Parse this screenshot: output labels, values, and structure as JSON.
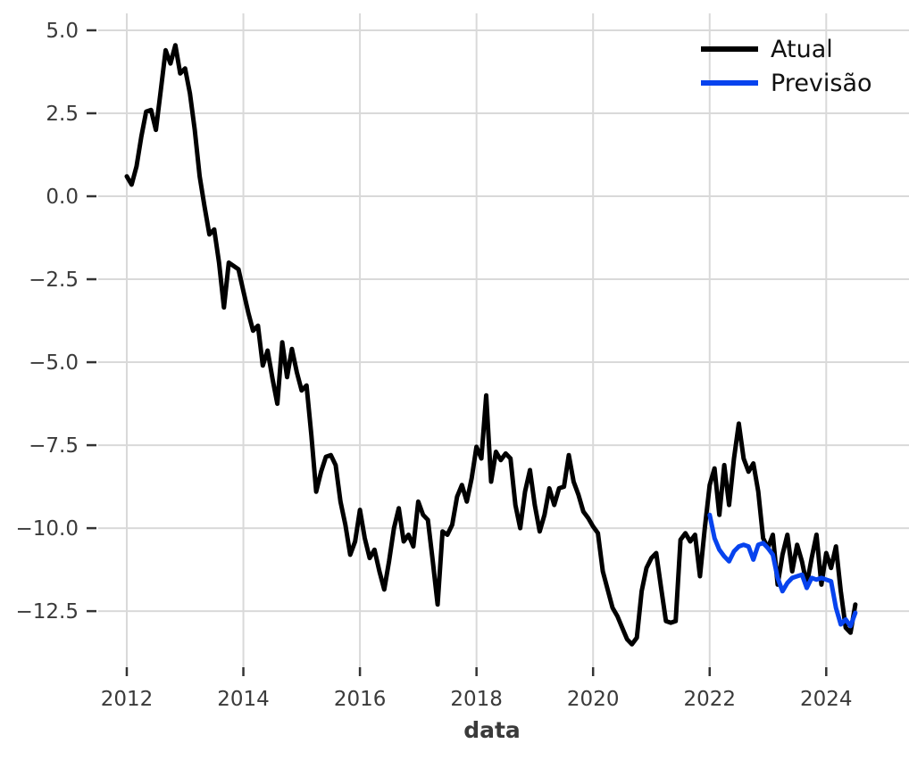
{
  "chart_data": {
    "type": "line",
    "title": "",
    "xlabel": "data",
    "ylabel": "",
    "grid": true,
    "background_color": "#ffffff",
    "grid_color": "#d9d9d9",
    "tick_color": "#333333",
    "tick_label_color": "#3a3a3a",
    "legend_position": "top-right",
    "xlim": [
      2011.51,
      2025.42
    ],
    "ylim": [
      -14.19,
      5.51
    ],
    "x_ticks": [
      2012,
      2014,
      2016,
      2018,
      2020,
      2022,
      2024
    ],
    "x_tick_labels": [
      "2012",
      "2014",
      "2016",
      "2018",
      "2020",
      "2022",
      "2024"
    ],
    "y_ticks": [
      5.0,
      2.5,
      0.0,
      -2.5,
      -5.0,
      -7.5,
      -10.0,
      -12.5
    ],
    "y_tick_labels": [
      "5.0",
      "2.5",
      "0.0",
      "−2.5",
      "−5.0",
      "−7.5",
      "−10.0",
      "−12.5"
    ],
    "x_unit": "decimal_year, monthly points",
    "series": [
      {
        "name": "Atual",
        "color": "#000000",
        "line_width": 5,
        "start_year": 2012.0,
        "points_per_year": 12,
        "values": [
          0.6,
          0.35,
          0.9,
          1.8,
          2.55,
          2.6,
          2.0,
          3.2,
          4.4,
          4.0,
          4.55,
          3.7,
          3.85,
          3.1,
          2.0,
          0.6,
          -0.3,
          -1.15,
          -1.0,
          -2.0,
          -3.35,
          -2.0,
          -2.1,
          -2.2,
          -2.85,
          -3.5,
          -4.05,
          -3.9,
          -5.1,
          -4.65,
          -5.5,
          -6.25,
          -4.4,
          -5.45,
          -4.6,
          -5.3,
          -5.85,
          -5.7,
          -7.2,
          -8.9,
          -8.3,
          -7.85,
          -7.8,
          -8.1,
          -9.2,
          -9.9,
          -10.8,
          -10.4,
          -9.45,
          -10.3,
          -10.9,
          -10.65,
          -11.3,
          -11.85,
          -11.0,
          -10.0,
          -9.4,
          -10.4,
          -10.2,
          -10.55,
          -9.2,
          -9.6,
          -9.75,
          -11.0,
          -12.3,
          -10.1,
          -10.2,
          -9.9,
          -9.05,
          -8.7,
          -9.2,
          -8.5,
          -7.55,
          -7.9,
          -6.0,
          -8.6,
          -7.7,
          -7.95,
          -7.75,
          -7.9,
          -9.3,
          -10.0,
          -8.9,
          -8.25,
          -9.3,
          -10.1,
          -9.6,
          -8.8,
          -9.3,
          -8.8,
          -8.75,
          -7.8,
          -8.6,
          -9.0,
          -9.5,
          -9.7,
          -9.95,
          -10.15,
          -11.3,
          -11.85,
          -12.4,
          -12.65,
          -13.0,
          -13.35,
          -13.5,
          -13.3,
          -11.9,
          -11.2,
          -10.9,
          -10.75,
          -11.8,
          -12.8,
          -12.85,
          -12.8,
          -10.35,
          -10.15,
          -10.4,
          -10.2,
          -11.45,
          -10.0,
          -8.7,
          -8.2,
          -9.6,
          -8.1,
          -9.3,
          -7.9,
          -6.85,
          -7.9,
          -8.3,
          -8.05,
          -8.9,
          -10.3,
          -10.6,
          -10.2,
          -11.7,
          -10.8,
          -10.2,
          -11.3,
          -10.5,
          -11.0,
          -11.7,
          -10.9,
          -10.2,
          -11.7,
          -10.75,
          -11.2,
          -10.55,
          -11.9,
          -13.0,
          -13.15,
          -12.3
        ]
      },
      {
        "name": "Previsão",
        "color": "#0743ee",
        "line_width": 5,
        "start_year": 2022.0,
        "points_per_year": 12,
        "values": [
          -9.6,
          -10.3,
          -10.65,
          -10.85,
          -11.0,
          -10.7,
          -10.55,
          -10.5,
          -10.55,
          -10.95,
          -10.5,
          -10.45,
          -10.6,
          -10.8,
          -11.5,
          -11.9,
          -11.65,
          -11.5,
          -11.45,
          -11.4,
          -11.8,
          -11.5,
          -11.55,
          -11.5,
          -11.55,
          -11.6,
          -12.4,
          -12.9,
          -12.75,
          -12.95,
          -12.55
        ]
      }
    ]
  }
}
